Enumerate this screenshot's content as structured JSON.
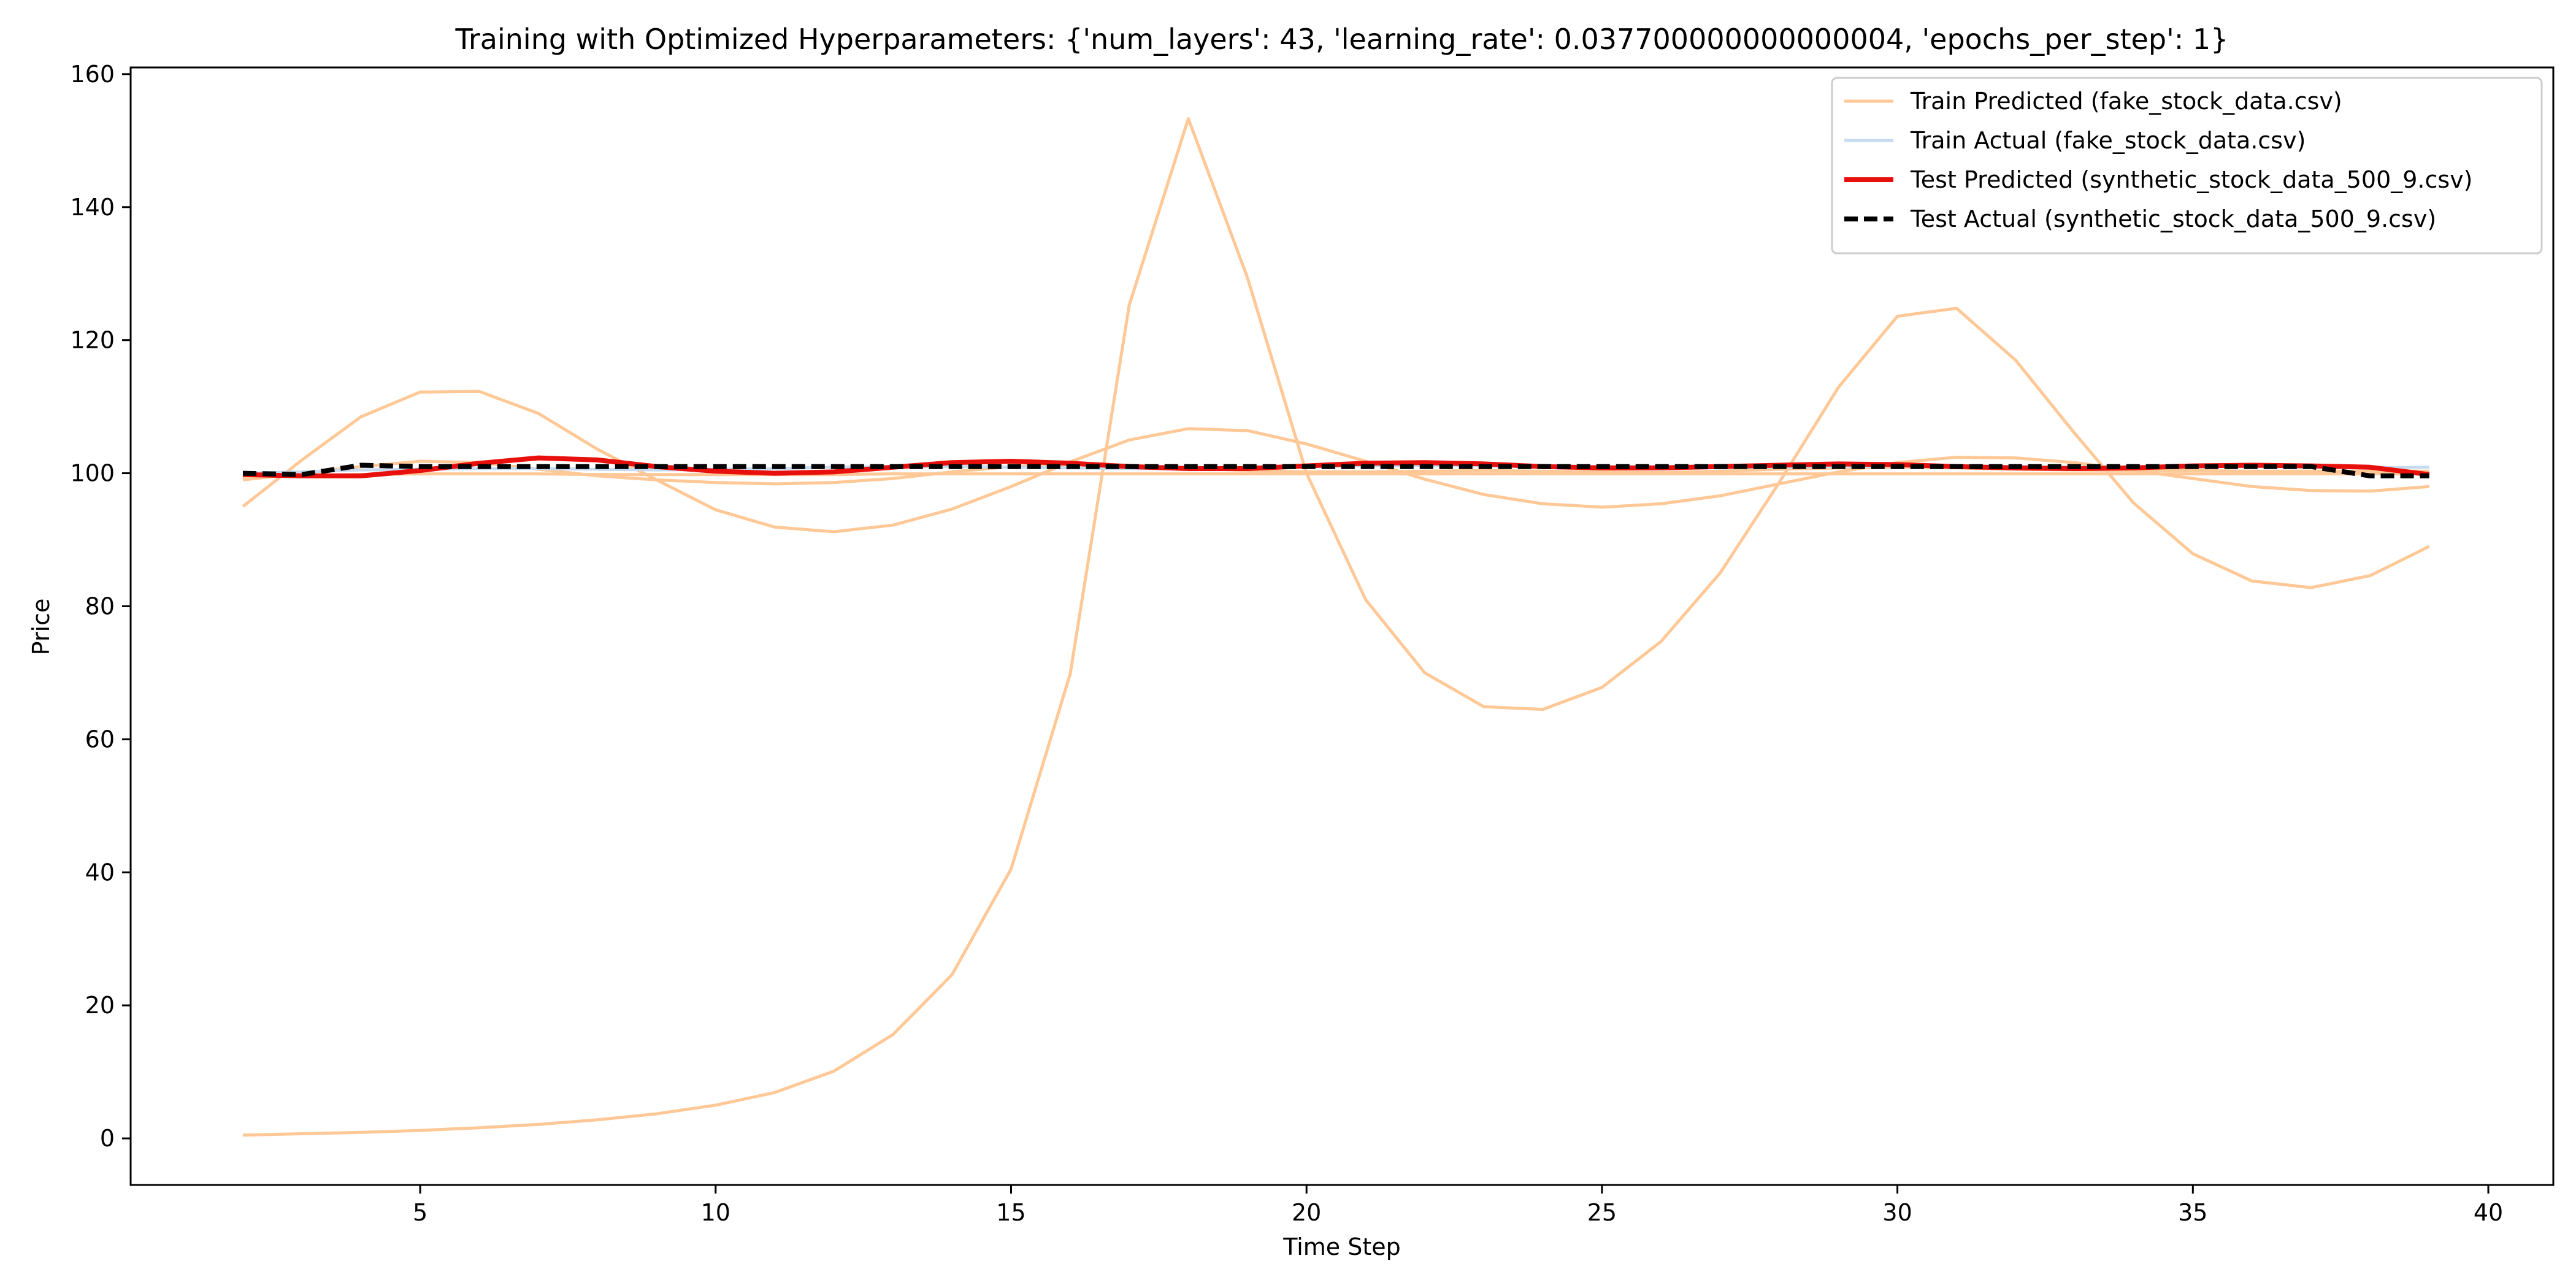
{
  "chart_data": {
    "type": "line",
    "title": "Training with Optimized Hyperparameters: {'num_layers': 43, 'learning_rate': 0.037700000000000004, 'epochs_per_step': 1}",
    "xlabel": "Time Step",
    "ylabel": "Price",
    "xlim": [
      0.1,
      41.1
    ],
    "ylim": [
      -7,
      161
    ],
    "xticks": [
      5,
      10,
      15,
      20,
      25,
      30,
      35,
      40
    ],
    "yticks": [
      0,
      20,
      40,
      60,
      80,
      100,
      120,
      140,
      160
    ],
    "grid": false,
    "legend_position": "top-right",
    "x": [
      2,
      3,
      4,
      5,
      6,
      7,
      8,
      9,
      10,
      11,
      12,
      13,
      14,
      15,
      16,
      17,
      18,
      19,
      20,
      21,
      22,
      23,
      24,
      25,
      26,
      27,
      28,
      29,
      30,
      31,
      32,
      33,
      34,
      35,
      36,
      37,
      38,
      39
    ],
    "series": [
      {
        "name": "Train Predicted (fake_stock_data.csv)",
        "color": "#ffc896",
        "style": "solid",
        "lines": [
          [
            0.5,
            0.7,
            0.9,
            1.2,
            1.6,
            2.1,
            2.8,
            3.7,
            5.0,
            6.9,
            10.1,
            15.6,
            24.6,
            40.5,
            69.8,
            125.3,
            153.3,
            129.4,
            100.0,
            81.0,
            70.0,
            64.9,
            64.5,
            67.8,
            74.7,
            85.0,
            98.6,
            112.9,
            123.6,
            124.8,
            117.0,
            106.0,
            95.5,
            87.9,
            83.8,
            82.8,
            84.6,
            89.0
          ],
          [
            95.0,
            102.0,
            108.5,
            112.2,
            112.3,
            109.0,
            103.6,
            99.0,
            94.5,
            91.9,
            91.2,
            92.2,
            94.6,
            98.0,
            101.7,
            105.0,
            106.7,
            106.4,
            104.4,
            101.8,
            99.1,
            96.8,
            95.4,
            94.9,
            95.4,
            96.6,
            98.4,
            100.2,
            101.6,
            102.4,
            102.3,
            101.6,
            100.4,
            99.2,
            98.0,
            97.4,
            97.3,
            98.0
          ],
          [
            99.0,
            100.0,
            101.0,
            101.8,
            101.6,
            100.6,
            99.6,
            99.0,
            98.6,
            98.4,
            98.6,
            99.2,
            100.2,
            101.0,
            101.3,
            101.2,
            100.8,
            100.4,
            100.2,
            100.2,
            100.3,
            100.4,
            100.3,
            100.2,
            100.1,
            100.3,
            100.6,
            100.8,
            100.9,
            100.8,
            100.6,
            100.5,
            100.4,
            100.4,
            100.3,
            100.3,
            100.3,
            100.3
          ],
          [
            99.4,
            99.6,
            99.8,
            99.9,
            99.9,
            99.9,
            99.8,
            99.8,
            99.8,
            99.8,
            99.8,
            99.9,
            99.9,
            99.9,
            99.9,
            99.9,
            99.9,
            99.9,
            99.9,
            99.9,
            99.9,
            99.9,
            99.9,
            99.9,
            99.9,
            99.9,
            99.9,
            99.9,
            99.9,
            99.9,
            99.9,
            99.9,
            99.9,
            99.9,
            99.9,
            99.9,
            99.9,
            99.9
          ]
        ]
      },
      {
        "name": "Train Actual (fake_stock_data.csv)",
        "color": "#c6dbef",
        "style": "solid",
        "lines": [
          [
            100.0,
            100.2,
            100.5,
            100.6,
            100.7,
            100.7,
            100.6,
            100.5,
            100.6,
            100.7,
            100.9,
            101.0,
            101.0,
            100.9,
            100.8,
            100.7,
            100.7,
            100.8,
            101.0,
            101.1,
            101.2,
            101.1,
            101.0,
            100.9,
            100.8,
            100.8,
            100.9,
            101.0,
            101.1,
            101.1,
            101.0,
            100.9,
            100.9,
            101.0,
            101.0,
            100.9,
            100.8,
            100.9
          ]
        ]
      },
      {
        "name": "Test Predicted (synthetic_stock_data_500_9.csv)",
        "color": "#e8100c",
        "style": "solid",
        "lines": [
          [
            99.8,
            99.6,
            99.6,
            100.4,
            101.5,
            102.3,
            102.0,
            101.0,
            100.3,
            100.0,
            100.2,
            100.9,
            101.6,
            101.8,
            101.5,
            101.0,
            100.7,
            100.7,
            101.1,
            101.5,
            101.6,
            101.4,
            101.0,
            100.8,
            100.8,
            101.0,
            101.2,
            101.4,
            101.3,
            101.0,
            100.8,
            100.7,
            100.8,
            101.1,
            101.2,
            101.1,
            100.9,
            99.8
          ]
        ]
      },
      {
        "name": "Test Actual (synthetic_stock_data_500_9.csv)",
        "color": "#000000",
        "style": "dashed",
        "lines": [
          [
            100.0,
            99.8,
            101.2,
            101.0,
            101.0,
            101.0,
            101.0,
            101.0,
            101.0,
            101.0,
            101.0,
            101.0,
            101.0,
            101.0,
            101.0,
            101.0,
            101.0,
            101.0,
            101.0,
            101.0,
            101.0,
            101.0,
            101.0,
            101.0,
            101.0,
            101.0,
            101.0,
            101.0,
            101.0,
            101.0,
            101.0,
            101.0,
            101.0,
            101.0,
            101.0,
            101.0,
            99.6,
            99.6
          ]
        ]
      }
    ]
  }
}
